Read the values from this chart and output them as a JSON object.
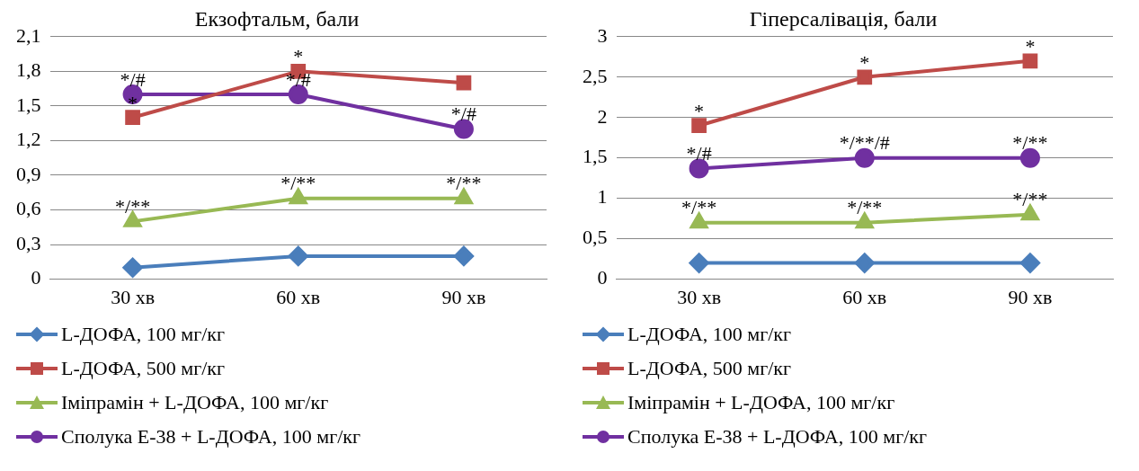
{
  "chart_data": [
    {
      "type": "line",
      "title": "Екзофтальм, бали",
      "categories": [
        "30 хв",
        "60 хв",
        "90 хв"
      ],
      "series": [
        {
          "name": "L-ДОФА, 100 мг/кг",
          "color": "#4a7ebb",
          "marker": "diamond",
          "values": [
            0.1,
            0.2,
            0.2
          ]
        },
        {
          "name": "L-ДОФА, 500 мг/кг",
          "color": "#be4b48",
          "marker": "square",
          "values": [
            1.4,
            1.8,
            1.7
          ]
        },
        {
          "name": "Іміпрамін + L-ДОФА, 100 мг/кг",
          "color": "#98b954",
          "marker": "triangle",
          "values": [
            0.5,
            0.7,
            0.7
          ]
        },
        {
          "name": "Сполука Е-38 + L-ДОФА, 100 мг/кг",
          "color": "#7030a0",
          "marker": "circle",
          "values": [
            1.6,
            1.6,
            1.3
          ]
        }
      ],
      "ylim": [
        0,
        2.1
      ],
      "yticks": [
        0,
        {
          "value": 0.3,
          "label": "0,3"
        },
        {
          "value": 0.6,
          "label": "0,6"
        },
        {
          "value": 0.9,
          "label": "0,9"
        },
        {
          "value": 1.2,
          "label": "1,2"
        },
        {
          "value": 1.5,
          "label": "1,5"
        },
        {
          "value": 1.8,
          "label": "1,8"
        },
        {
          "value": 2.1,
          "label": "2,1"
        }
      ],
      "grid": "y",
      "legend": "bottom",
      "annotations": [
        {
          "text": "*/#",
          "x": "30 хв",
          "y": 1.6
        },
        {
          "text": "*",
          "x": "30 хв",
          "y": 1.4
        },
        {
          "text": "*",
          "x": "60 хв",
          "y": 1.8
        },
        {
          "text": "*/#",
          "x": "60 хв",
          "y": 1.6
        },
        {
          "text": "*/#",
          "x": "90 хв",
          "y": 1.3
        },
        {
          "text": "*/**",
          "x": "30 хв",
          "y": 0.5
        },
        {
          "text": "*/**",
          "x": "60 хв",
          "y": 0.7
        },
        {
          "text": "*/**",
          "x": "90 хв",
          "y": 0.7
        }
      ]
    },
    {
      "type": "line",
      "title": "Гіперсалівація, бали",
      "categories": [
        "30 хв",
        "60 хв",
        "90 хв"
      ],
      "series": [
        {
          "name": "L-ДОФА, 100 мг/кг",
          "color": "#4a7ebb",
          "marker": "diamond",
          "values": [
            0.2,
            0.2,
            0.2
          ]
        },
        {
          "name": "L-ДОФА, 500 мг/кг",
          "color": "#be4b48",
          "marker": "square",
          "values": [
            1.9,
            2.5,
            2.7
          ]
        },
        {
          "name": "Іміпрамін + L-ДОФА, 100 мг/кг",
          "color": "#98b954",
          "marker": "triangle",
          "values": [
            0.7,
            0.7,
            0.8
          ]
        },
        {
          "name": "Сполука Е-38 + L-ДОФА, 100 мг/кг",
          "color": "#7030a0",
          "marker": "circle",
          "values": [
            1.37,
            1.5,
            1.5
          ]
        }
      ],
      "ylim": [
        0,
        3
      ],
      "yticks": [
        0,
        {
          "value": 0.5,
          "label": "0,5"
        },
        1,
        {
          "value": 1.5,
          "label": "1,5"
        },
        2,
        {
          "value": 2.5,
          "label": "2,5"
        },
        3
      ],
      "grid": "y",
      "legend": "bottom",
      "annotations": [
        {
          "text": "*",
          "x": "30 хв",
          "y": 1.9
        },
        {
          "text": "*/#",
          "x": "30 хв",
          "y": 1.37
        },
        {
          "text": "*",
          "x": "60 хв",
          "y": 2.5
        },
        {
          "text": "*/**/#",
          "x": "60 хв",
          "y": 1.5
        },
        {
          "text": "*",
          "x": "90 хв",
          "y": 2.7
        },
        {
          "text": "*/**",
          "x": "90 хв",
          "y": 1.5
        },
        {
          "text": "*/**",
          "x": "30 хв",
          "y": 0.7
        },
        {
          "text": "*/**",
          "x": "60 хв",
          "y": 0.7
        },
        {
          "text": "*/**",
          "x": "90 хв",
          "y": 0.8
        }
      ]
    }
  ]
}
